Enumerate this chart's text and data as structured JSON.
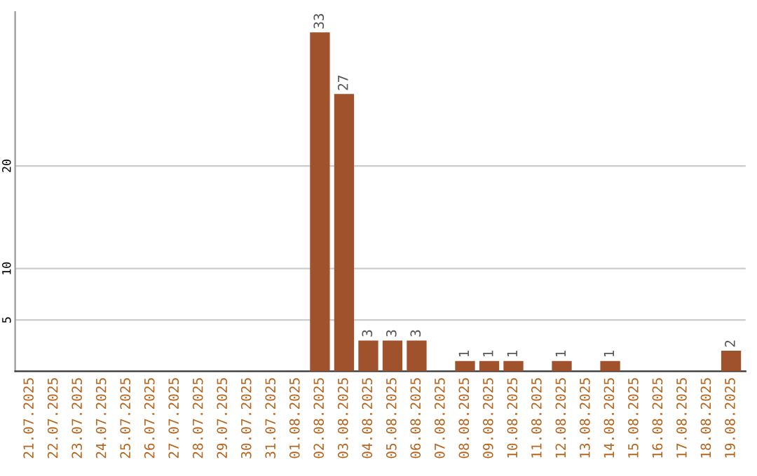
{
  "chart_data": {
    "type": "bar",
    "categories": [
      "21.07.2025",
      "22.07.2025",
      "23.07.2025",
      "24.07.2025",
      "25.07.2025",
      "26.07.2025",
      "27.07.2025",
      "28.07.2025",
      "29.07.2025",
      "30.07.2025",
      "31.07.2025",
      "01.08.2025",
      "02.08.2025",
      "03.08.2025",
      "04.08.2025",
      "05.08.2025",
      "06.08.2025",
      "07.08.2025",
      "08.08.2025",
      "09.08.2025",
      "10.08.2025",
      "11.08.2025",
      "12.08.2025",
      "13.08.2025",
      "14.08.2025",
      "15.08.2025",
      "16.08.2025",
      "17.08.2025",
      "18.08.2025",
      "19.08.2025"
    ],
    "values": [
      0,
      0,
      0,
      0,
      0,
      0,
      0,
      0,
      0,
      0,
      0,
      0,
      33,
      27,
      3,
      3,
      3,
      0,
      1,
      1,
      1,
      0,
      1,
      0,
      1,
      0,
      0,
      0,
      0,
      2
    ],
    "value_labels": [
      null,
      null,
      null,
      null,
      null,
      null,
      null,
      null,
      null,
      null,
      null,
      null,
      "33",
      "27",
      "3",
      "3",
      "3",
      null,
      "1",
      "1",
      "1",
      null,
      "1",
      null,
      "1",
      null,
      null,
      null,
      null,
      "2"
    ],
    "color": "#a0522d",
    "ylim": [
      0,
      35
    ],
    "yticks": [
      5,
      10,
      20
    ],
    "grid": "y"
  }
}
